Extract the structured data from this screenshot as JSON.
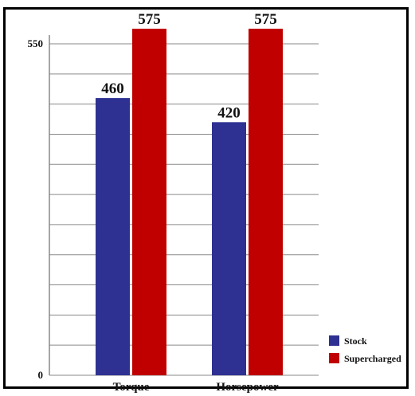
{
  "chart_data": {
    "type": "bar",
    "categories": [
      "Torque",
      "Horsepower"
    ],
    "series": [
      {
        "name": "Stock",
        "values": [
          460,
          420
        ],
        "color": "#2e3192"
      },
      {
        "name": "Supercharged",
        "values": [
          575,
          575
        ],
        "color": "#c00000"
      }
    ],
    "ylim": [
      0,
      550
    ],
    "y_ticks": [
      0,
      550
    ],
    "grid": true,
    "gridline_count": 11,
    "legend_position": "bottom-right",
    "data_labels": true
  }
}
